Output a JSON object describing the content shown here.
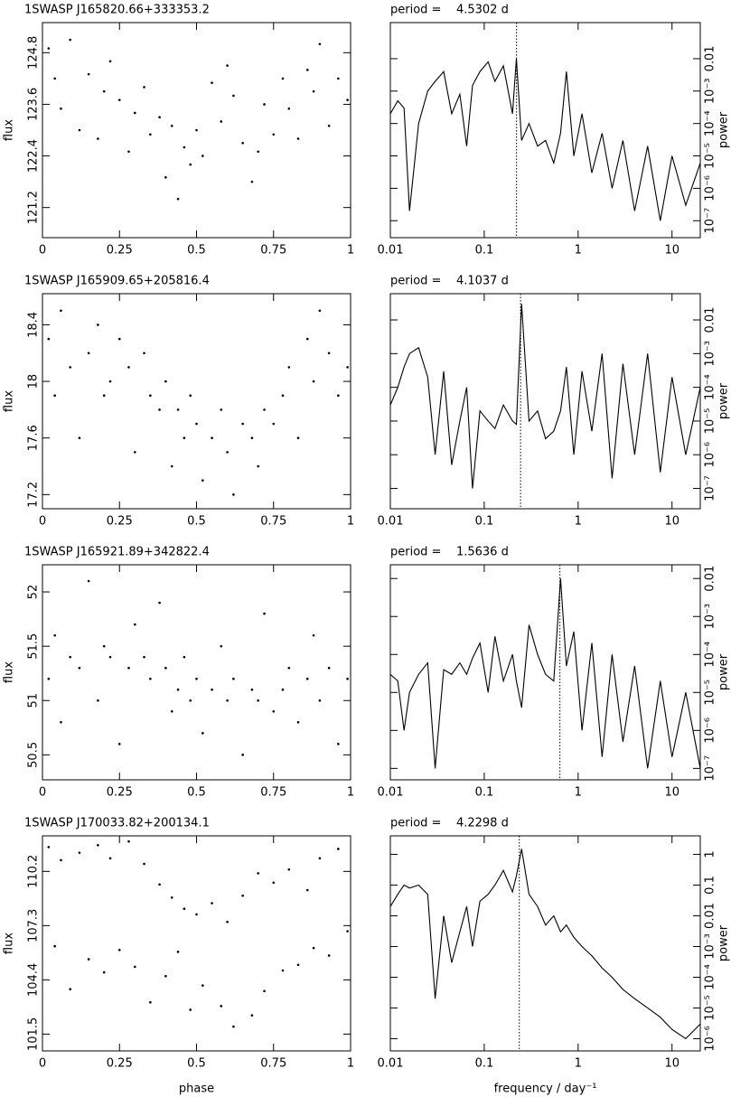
{
  "chart_data": [
    {
      "type": "scatter",
      "title": "1SWASP J165820.66+333353.2",
      "ylabel": "flux",
      "color": "#000000",
      "y_axis_side": "left",
      "x": [
        0.02,
        0.04,
        0.06,
        0.09,
        0.12,
        0.15,
        0.18,
        0.2,
        0.22,
        0.25,
        0.28,
        0.3,
        0.33,
        0.35,
        0.38,
        0.4,
        0.42,
        0.44,
        0.46,
        0.48,
        0.5,
        0.52,
        0.55,
        0.58,
        0.6,
        0.62,
        0.65,
        0.68,
        0.7,
        0.72,
        0.75,
        0.78,
        0.8,
        0.83,
        0.86,
        0.88,
        0.9,
        0.93,
        0.96,
        0.99
      ],
      "values": [
        124.9,
        124.2,
        123.5,
        125.1,
        123.0,
        124.3,
        122.8,
        123.9,
        124.6,
        123.7,
        122.5,
        123.4,
        124.0,
        122.9,
        123.3,
        121.9,
        123.1,
        121.4,
        122.6,
        122.2,
        123.0,
        122.4,
        124.1,
        123.2,
        124.5,
        123.8,
        122.7,
        121.8,
        122.5,
        123.6,
        122.9,
        124.2,
        123.5,
        122.8,
        124.4,
        123.9,
        125.0,
        123.1,
        124.2,
        123.7
      ],
      "xlim": [
        0,
        1
      ],
      "xticks": [
        0,
        0.25,
        0.5,
        0.75,
        1
      ],
      "ylim": [
        120.5,
        125.5
      ],
      "yticks": [
        121.2,
        122.4,
        123.6,
        124.8
      ]
    },
    {
      "type": "line",
      "title": "period =    4.5302 d",
      "ylabel": "power",
      "color": "#000000",
      "y_axis_side": "right",
      "log_x": true,
      "log_y": true,
      "vline": 0.2207,
      "x": [
        0.01,
        0.012,
        0.014,
        0.016,
        0.02,
        0.025,
        0.03,
        0.037,
        0.045,
        0.055,
        0.065,
        0.075,
        0.09,
        0.11,
        0.13,
        0.16,
        0.2,
        0.22,
        0.25,
        0.3,
        0.37,
        0.45,
        0.55,
        0.65,
        0.75,
        0.9,
        1.1,
        1.4,
        1.8,
        2.3,
        3,
        4,
        5.5,
        7.5,
        10,
        14,
        20
      ],
      "values": [
        0.0002,
        0.0005,
        0.0003,
        2e-07,
        0.0001,
        0.001,
        0.002,
        0.004,
        0.0002,
        0.0008,
        2e-05,
        0.0015,
        0.004,
        0.008,
        0.002,
        0.006,
        0.0002,
        0.01,
        3e-05,
        0.0001,
        2e-05,
        3e-05,
        6e-06,
        5e-05,
        0.004,
        1e-05,
        0.0002,
        3e-06,
        5e-05,
        1e-06,
        3e-05,
        2e-07,
        2e-05,
        1e-07,
        1e-05,
        3e-07,
        6e-06
      ],
      "xlim": [
        0.01,
        20
      ],
      "xticks": [
        0.01,
        0.1,
        1,
        10
      ],
      "ylim": [
        3e-08,
        0.13
      ],
      "yticks": [
        {
          "value": 1e-07,
          "label": "10⁻⁷"
        },
        {
          "value": 1e-06,
          "label": "10⁻⁶"
        },
        {
          "value": 1e-05,
          "label": "10⁻⁵"
        },
        {
          "value": 0.0001,
          "label": "10⁻⁴"
        },
        {
          "value": 0.001,
          "label": "10⁻³"
        },
        0.01
      ]
    },
    {
      "type": "scatter",
      "title": "1SWASP J165909.65+205816.4",
      "ylabel": "flux",
      "color": "#000000",
      "y_axis_side": "left",
      "x": [
        0.02,
        0.04,
        0.06,
        0.09,
        0.12,
        0.15,
        0.18,
        0.2,
        0.22,
        0.25,
        0.28,
        0.3,
        0.33,
        0.35,
        0.38,
        0.4,
        0.42,
        0.44,
        0.46,
        0.48,
        0.5,
        0.52,
        0.55,
        0.58,
        0.6,
        0.62,
        0.65,
        0.68,
        0.7,
        0.72,
        0.75,
        0.78,
        0.8,
        0.83,
        0.86,
        0.88,
        0.9,
        0.93,
        0.96,
        0.99
      ],
      "values": [
        18.3,
        17.9,
        18.5,
        18.1,
        17.6,
        18.2,
        18.4,
        17.9,
        18.0,
        18.3,
        18.1,
        17.5,
        18.2,
        17.9,
        17.8,
        18.0,
        17.4,
        17.8,
        17.6,
        17.9,
        17.7,
        17.3,
        17.6,
        17.8,
        17.5,
        17.2,
        17.7,
        17.6,
        17.4,
        17.8,
        17.7,
        17.9,
        18.1,
        17.6,
        18.3,
        18.0,
        18.5,
        18.2,
        17.9,
        18.1
      ],
      "xlim": [
        0,
        1
      ],
      "xticks": [
        0,
        0.25,
        0.5,
        0.75,
        1
      ],
      "ylim": [
        17.1,
        18.62
      ],
      "yticks": [
        17.2,
        17.6,
        18,
        18.4
      ]
    },
    {
      "type": "line",
      "title": "period =    4.1037 d",
      "ylabel": "power",
      "color": "#000000",
      "y_axis_side": "right",
      "log_x": true,
      "log_y": true,
      "vline": 0.2437,
      "x": [
        0.01,
        0.012,
        0.014,
        0.016,
        0.02,
        0.025,
        0.03,
        0.037,
        0.045,
        0.055,
        0.065,
        0.075,
        0.09,
        0.11,
        0.13,
        0.16,
        0.2,
        0.22,
        0.25,
        0.3,
        0.37,
        0.45,
        0.55,
        0.65,
        0.75,
        0.9,
        1.1,
        1.4,
        1.8,
        2.3,
        3,
        4,
        5.5,
        7.5,
        10,
        14,
        20
      ],
      "values": [
        3e-05,
        0.0001,
        0.0004,
        0.001,
        0.0015,
        0.0002,
        1e-06,
        0.0003,
        5e-07,
        1e-05,
        0.0001,
        1e-07,
        2e-05,
        1e-05,
        6e-06,
        3e-05,
        1e-05,
        8e-06,
        0.03,
        1e-05,
        2e-05,
        3e-06,
        5e-06,
        2e-05,
        0.0004,
        1e-06,
        0.0003,
        5e-06,
        0.001,
        2e-07,
        0.0005,
        1e-06,
        0.001,
        3e-07,
        0.0002,
        1e-06,
        0.0001
      ],
      "xlim": [
        0.01,
        20
      ],
      "xticks": [
        0.01,
        0.1,
        1,
        10
      ],
      "ylim": [
        2.5e-08,
        0.06
      ],
      "yticks": [
        {
          "value": 1e-07,
          "label": "10⁻⁷"
        },
        {
          "value": 1e-06,
          "label": "10⁻⁶"
        },
        {
          "value": 1e-05,
          "label": "10⁻⁵"
        },
        {
          "value": 0.0001,
          "label": "10⁻⁴"
        },
        {
          "value": 0.001,
          "label": "10⁻³"
        },
        0.01
      ]
    },
    {
      "type": "scatter",
      "title": "1SWASP J165921.89+342822.4",
      "ylabel": "flux",
      "color": "#000000",
      "y_axis_side": "left",
      "x": [
        0.02,
        0.04,
        0.06,
        0.09,
        0.12,
        0.15,
        0.18,
        0.2,
        0.22,
        0.25,
        0.28,
        0.3,
        0.33,
        0.35,
        0.38,
        0.4,
        0.42,
        0.44,
        0.46,
        0.48,
        0.5,
        0.52,
        0.55,
        0.58,
        0.6,
        0.62,
        0.65,
        0.68,
        0.7,
        0.72,
        0.75,
        0.78,
        0.8,
        0.83,
        0.86,
        0.88,
        0.9,
        0.93,
        0.96,
        0.99
      ],
      "values": [
        51.2,
        51.6,
        50.8,
        51.4,
        51.3,
        52.1,
        51.0,
        51.5,
        51.4,
        50.6,
        51.3,
        51.7,
        51.4,
        51.2,
        51.9,
        51.3,
        50.9,
        51.1,
        51.4,
        51.0,
        51.2,
        50.7,
        51.1,
        51.5,
        51.0,
        51.2,
        50.5,
        51.1,
        51.0,
        51.8,
        50.9,
        51.1,
        51.3,
        50.8,
        51.2,
        51.6,
        51.0,
        51.3,
        50.6,
        51.2
      ],
      "xlim": [
        0,
        1
      ],
      "xticks": [
        0,
        0.25,
        0.5,
        0.75,
        1
      ],
      "ylim": [
        50.27,
        52.25
      ],
      "yticks": [
        50.5,
        51,
        51.5,
        52
      ]
    },
    {
      "type": "line",
      "title": "period =    1.5636 d",
      "ylabel": "power",
      "color": "#000000",
      "y_axis_side": "right",
      "log_x": true,
      "log_y": true,
      "vline": 0.6396,
      "x": [
        0.01,
        0.012,
        0.014,
        0.016,
        0.02,
        0.025,
        0.03,
        0.037,
        0.045,
        0.055,
        0.065,
        0.075,
        0.09,
        0.11,
        0.13,
        0.16,
        0.2,
        0.22,
        0.25,
        0.3,
        0.37,
        0.45,
        0.55,
        0.65,
        0.75,
        0.9,
        1.1,
        1.4,
        1.8,
        2.3,
        3,
        4,
        5.5,
        7.5,
        10,
        14,
        20
      ],
      "values": [
        3e-05,
        2e-05,
        1e-06,
        1e-05,
        3e-05,
        6e-05,
        1e-07,
        4e-05,
        3e-05,
        6e-05,
        3e-05,
        8e-05,
        0.0002,
        1e-05,
        0.0003,
        2e-05,
        0.0001,
        2e-05,
        4e-06,
        0.0006,
        0.0001,
        3e-05,
        2e-05,
        0.01,
        5e-05,
        0.0004,
        1e-06,
        0.0002,
        2e-07,
        0.0001,
        5e-07,
        5e-05,
        1e-07,
        2e-05,
        2e-07,
        1e-05,
        1e-07
      ],
      "xlim": [
        0.01,
        20
      ],
      "xticks": [
        0.01,
        0.1,
        1,
        10
      ],
      "ylim": [
        5e-08,
        0.023
      ],
      "yticks": [
        {
          "value": 1e-07,
          "label": "10⁻⁷"
        },
        {
          "value": 1e-06,
          "label": "10⁻⁶"
        },
        {
          "value": 1e-05,
          "label": "10⁻⁵"
        },
        {
          "value": 0.0001,
          "label": "10⁻⁴"
        },
        {
          "value": 0.001,
          "label": "10⁻³"
        },
        0.01
      ]
    },
    {
      "type": "scatter",
      "title": "1SWASP J170033.82+200134.1",
      "ylabel": "flux",
      "xlabel": "phase",
      "color": "#000000",
      "y_axis_side": "left",
      "x": [
        0.02,
        0.04,
        0.06,
        0.09,
        0.12,
        0.15,
        0.18,
        0.2,
        0.22,
        0.25,
        0.28,
        0.3,
        0.33,
        0.35,
        0.38,
        0.4,
        0.42,
        0.44,
        0.46,
        0.48,
        0.5,
        0.52,
        0.55,
        0.58,
        0.6,
        0.62,
        0.65,
        0.68,
        0.7,
        0.72,
        0.75,
        0.78,
        0.8,
        0.83,
        0.86,
        0.88,
        0.9,
        0.93,
        0.96,
        0.99
      ],
      "values": [
        111.5,
        106.2,
        110.8,
        103.9,
        111.2,
        105.5,
        111.6,
        104.8,
        110.9,
        106.0,
        111.8,
        105.1,
        110.6,
        103.2,
        109.5,
        104.6,
        108.8,
        105.9,
        108.2,
        102.8,
        107.9,
        104.1,
        108.5,
        103.0,
        107.5,
        101.9,
        108.9,
        102.5,
        110.1,
        103.8,
        109.6,
        104.9,
        110.3,
        105.2,
        109.2,
        106.1,
        110.9,
        105.7,
        111.4,
        107.0
      ],
      "xlim": [
        0,
        1
      ],
      "xticks": [
        0,
        0.25,
        0.5,
        0.75,
        1
      ],
      "ylim": [
        100.6,
        112.1
      ],
      "yticks": [
        101.5,
        104.4,
        107.3,
        110.2
      ]
    },
    {
      "type": "line",
      "title": "period =    4.2298 d",
      "ylabel": "power",
      "xlabel": "frequency / day⁻¹",
      "color": "#000000",
      "y_axis_side": "right",
      "log_x": true,
      "log_y": true,
      "vline": 0.2364,
      "x": [
        0.01,
        0.012,
        0.014,
        0.016,
        0.02,
        0.025,
        0.03,
        0.037,
        0.045,
        0.055,
        0.065,
        0.075,
        0.09,
        0.11,
        0.13,
        0.16,
        0.2,
        0.22,
        0.25,
        0.3,
        0.37,
        0.45,
        0.55,
        0.65,
        0.75,
        0.9,
        1.1,
        1.4,
        1.8,
        2.3,
        3,
        4,
        5.5,
        7.5,
        10,
        14,
        20
      ],
      "values": [
        0.02,
        0.05,
        0.1,
        0.08,
        0.1,
        0.05,
        2e-05,
        0.01,
        0.0003,
        0.003,
        0.02,
        0.001,
        0.03,
        0.05,
        0.1,
        0.3,
        0.06,
        0.2,
        1.5,
        0.05,
        0.02,
        0.005,
        0.01,
        0.003,
        0.005,
        0.002,
        0.001,
        0.0005,
        0.0002,
        0.0001,
        4e-05,
        2e-05,
        1e-05,
        5e-06,
        2e-06,
        1e-06,
        3e-06
      ],
      "xlim": [
        0.01,
        20
      ],
      "xticks": [
        0.01,
        0.1,
        1,
        10
      ],
      "ylim": [
        4e-07,
        4
      ],
      "yticks": [
        {
          "value": 1e-06,
          "label": "10⁻⁶"
        },
        {
          "value": 1e-05,
          "label": "10⁻⁵"
        },
        {
          "value": 0.0001,
          "label": "10⁻⁴"
        },
        {
          "value": 0.001,
          "label": "10⁻³"
        },
        0.01,
        0.1,
        1
      ]
    }
  ]
}
